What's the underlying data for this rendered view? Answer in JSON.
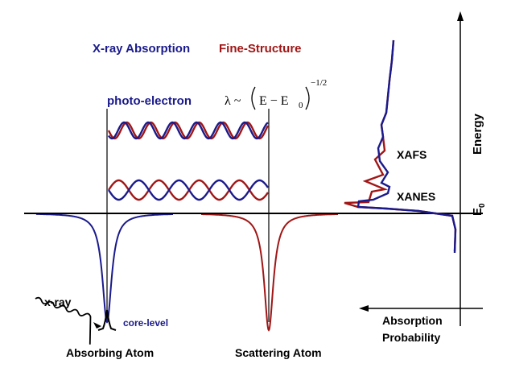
{
  "title": {
    "part1": "X-ray Absorption",
    "part2": "Fine-Structure",
    "color1": "#1a1a8c",
    "color2": "#a01616"
  },
  "photoelectron": {
    "label": "photo-electron",
    "formula_lambda": "λ ~",
    "formula_body": "E − E",
    "formula_sub": "0",
    "formula_exp": "−1/2"
  },
  "spectrum": {
    "xafs_label": "XAFS",
    "xanes_label": "XANES"
  },
  "axes": {
    "energy_label": "Energy",
    "e0_label": "E",
    "e0_sub": "0",
    "absorption_line1": "Absorption",
    "absorption_line2": "Probability"
  },
  "atoms": {
    "absorbing": "Absorbing Atom",
    "scattering": "Scattering Atom",
    "xray_label": "x-ray",
    "core_level_label": "core-level"
  },
  "colors": {
    "blue": "#1a1a8c",
    "red": "#a01616",
    "black": "#000000"
  }
}
